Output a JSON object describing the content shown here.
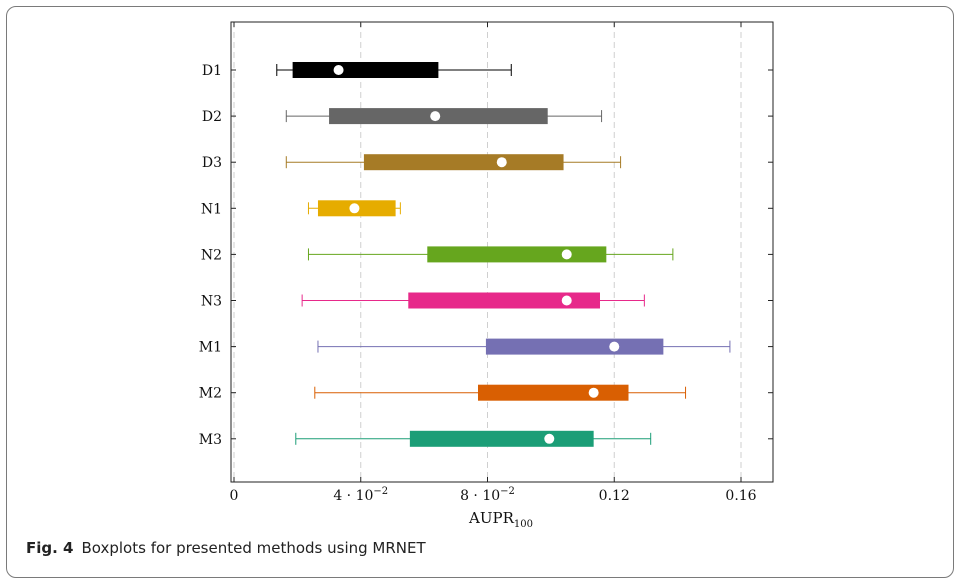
{
  "caption": {
    "fig_label": "Fig. 4",
    "text": "Boxplots for presented methods using MRNET"
  },
  "chart_data": {
    "type": "boxplot",
    "orientation": "horizontal",
    "xlabel_main": "AUPR",
    "xlabel_sub": "100",
    "xlim": [
      0,
      0.17
    ],
    "xticks": [
      {
        "value": 0,
        "label": "0",
        "sci": null
      },
      {
        "value": 0.04,
        "label": "4 · 10",
        "sci": "−2"
      },
      {
        "value": 0.08,
        "label": "8 · 10",
        "sci": "−2"
      },
      {
        "value": 0.12,
        "label": "0.12",
        "sci": null
      },
      {
        "value": 0.16,
        "label": "0.16",
        "sci": null
      }
    ],
    "grid": "vertical-dashed",
    "series": [
      {
        "name": "D1",
        "color": "#000000",
        "min": 0.0135,
        "q1": 0.0185,
        "mean": 0.033,
        "q3": 0.0645,
        "max": 0.0875
      },
      {
        "name": "D2",
        "color": "#666666",
        "min": 0.0165,
        "q1": 0.03,
        "mean": 0.0635,
        "q3": 0.099,
        "max": 0.116
      },
      {
        "name": "D3",
        "color": "#a67b26",
        "min": 0.0165,
        "q1": 0.041,
        "mean": 0.0845,
        "q3": 0.104,
        "max": 0.122
      },
      {
        "name": "N1",
        "color": "#e6ac00",
        "min": 0.0235,
        "q1": 0.0265,
        "mean": 0.038,
        "q3": 0.051,
        "max": 0.0525
      },
      {
        "name": "N2",
        "color": "#66a61e",
        "min": 0.0235,
        "q1": 0.061,
        "mean": 0.105,
        "q3": 0.1175,
        "max": 0.1385
      },
      {
        "name": "N3",
        "color": "#e7298a",
        "min": 0.0215,
        "q1": 0.055,
        "mean": 0.105,
        "q3": 0.1155,
        "max": 0.1295
      },
      {
        "name": "M1",
        "color": "#7570b3",
        "min": 0.0265,
        "q1": 0.0795,
        "mean": 0.12,
        "q3": 0.1355,
        "max": 0.1565
      },
      {
        "name": "M2",
        "color": "#d95f02",
        "min": 0.0255,
        "q1": 0.077,
        "mean": 0.1135,
        "q3": 0.1245,
        "max": 0.1425
      },
      {
        "name": "M3",
        "color": "#1b9e77",
        "min": 0.0195,
        "q1": 0.0555,
        "mean": 0.0995,
        "q3": 0.1135,
        "max": 0.1315
      }
    ]
  }
}
